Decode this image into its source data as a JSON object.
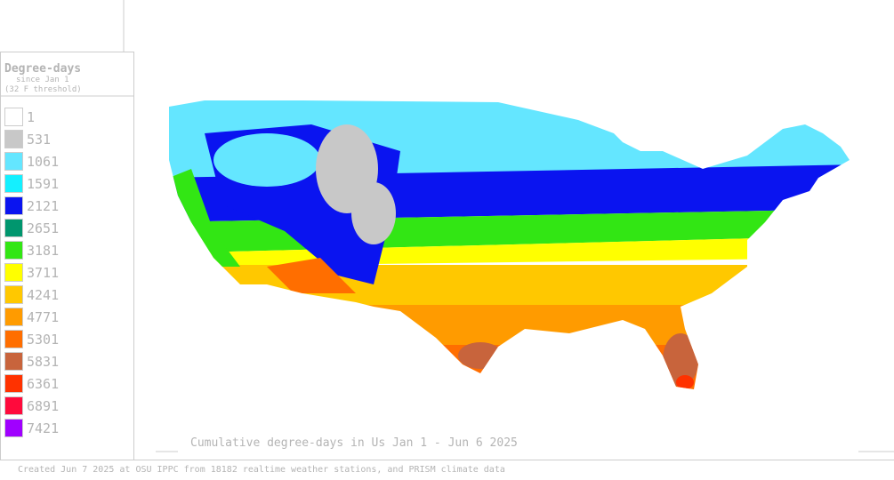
{
  "legend": {
    "title": "Degree-days",
    "subtitle": "since Jan 1",
    "note": "(32 F threshold)",
    "entries": [
      {
        "label": 1,
        "color": "#ffffff"
      },
      {
        "label": 531,
        "color": "#c8c8c8"
      },
      {
        "label": 1061,
        "color": "#64e6ff"
      },
      {
        "label": 1591,
        "color": "#14f0ff"
      },
      {
        "label": 2121,
        "color": "#0a14f0"
      },
      {
        "label": 2651,
        "color": "#00966e"
      },
      {
        "label": 3181,
        "color": "#32e614"
      },
      {
        "label": 3711,
        "color": "#ffff00"
      },
      {
        "label": 4241,
        "color": "#ffc800"
      },
      {
        "label": 4771,
        "color": "#ff9b00"
      },
      {
        "label": 5301,
        "color": "#ff6e00"
      },
      {
        "label": 5831,
        "color": "#c8643c"
      },
      {
        "label": 6361,
        "color": "#ff3200"
      },
      {
        "label": 6891,
        "color": "#ff0a3c"
      },
      {
        "label": 7421,
        "color": "#a000ff"
      }
    ]
  },
  "map": {
    "title": "Cumulative degree-days in Us  Jan 1 - Jun 6 2025"
  },
  "footer": "Created Jun 7 2025 at OSU IPPC from 18182 realtime weather stations, and PRISM climate data"
}
